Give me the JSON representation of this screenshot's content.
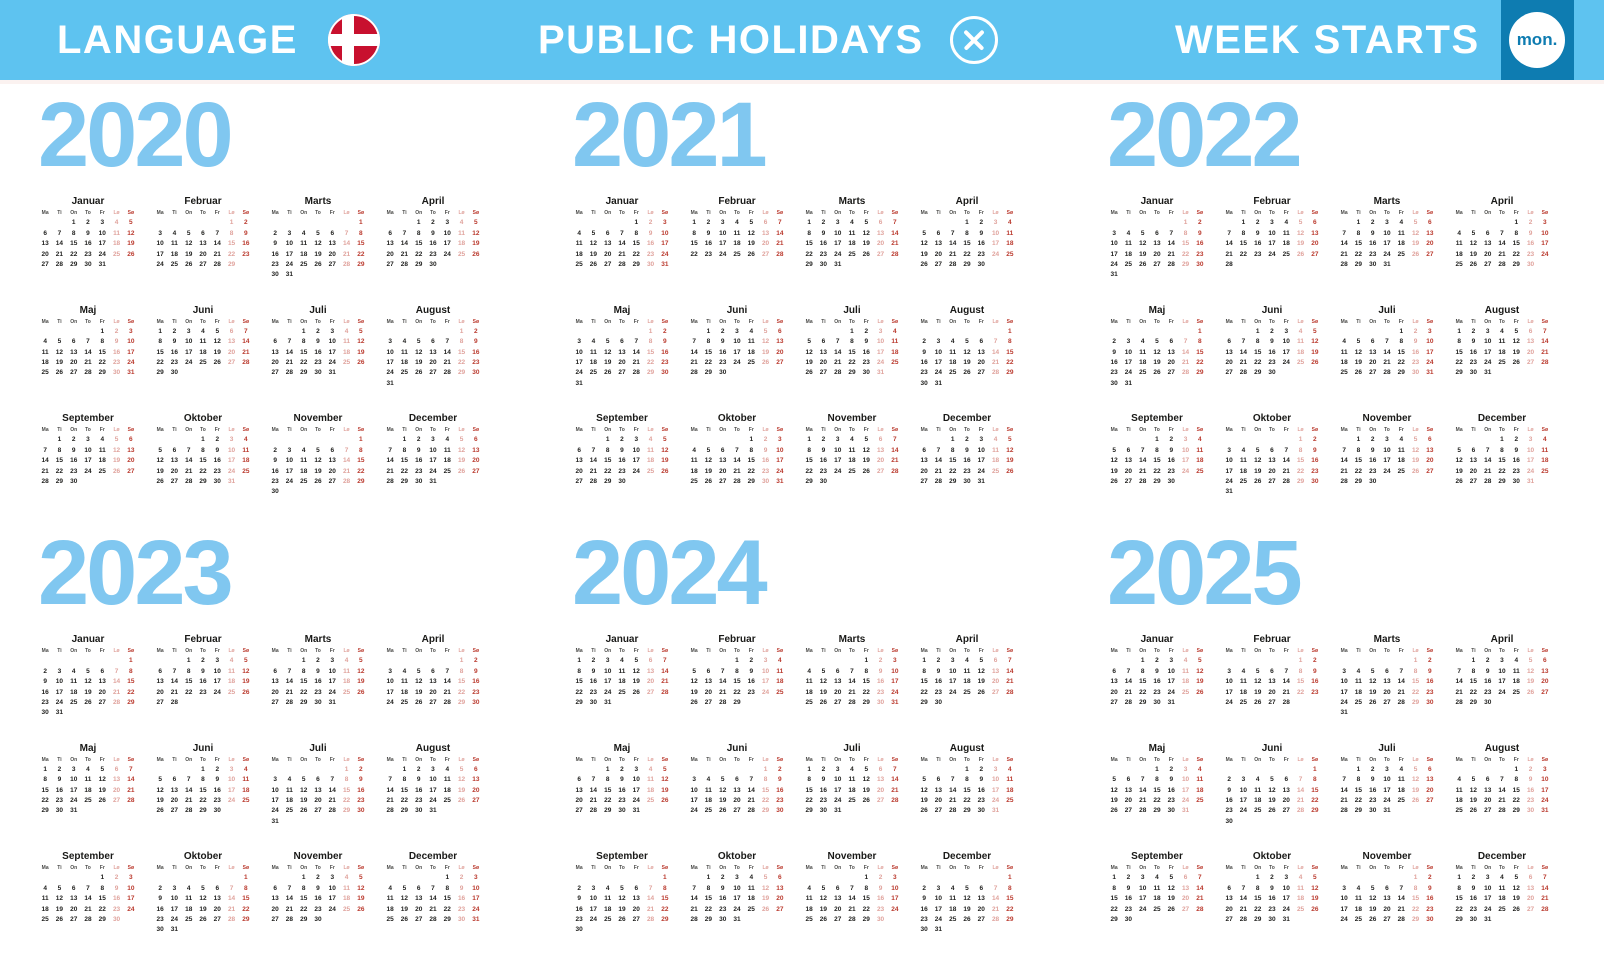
{
  "header": {
    "language": {
      "label": "LANGUAGE",
      "flag_icon": "denmark-flag-icon"
    },
    "public_holidays": {
      "label": "PUBLIC HOLIDAYS",
      "state_icon": "crossed-circle-icon",
      "state": "off"
    },
    "week_starts": {
      "label": "WEEK STARTS",
      "value": "mon."
    }
  },
  "colors": {
    "bar_blue": "#5ec3f0",
    "bar_dark_blue": "#0e7cb1",
    "year_blue": "#80c7f0",
    "weekday_text": "#21211f",
    "saturday": "#e0a39d",
    "sunday": "#ba392d",
    "flag_red": "#c8102e"
  },
  "calendar": {
    "day_headers": [
      "Ma",
      "Ti",
      "On",
      "To",
      "Fr",
      "Lø",
      "Sø"
    ],
    "years": [
      {
        "year": "2020",
        "months": [
          {
            "name": "Januar",
            "start": 2,
            "days": 31
          },
          {
            "name": "Februar",
            "start": 5,
            "days": 29
          },
          {
            "name": "Marts",
            "start": 6,
            "days": 31
          },
          {
            "name": "April",
            "start": 2,
            "days": 30
          },
          {
            "name": "Maj",
            "start": 4,
            "days": 31
          },
          {
            "name": "Juni",
            "start": 0,
            "days": 30
          },
          {
            "name": "Juli",
            "start": 2,
            "days": 31
          },
          {
            "name": "August",
            "start": 5,
            "days": 31
          },
          {
            "name": "September",
            "start": 1,
            "days": 30
          },
          {
            "name": "Oktober",
            "start": 3,
            "days": 31
          },
          {
            "name": "November",
            "start": 6,
            "days": 30
          },
          {
            "name": "December",
            "start": 1,
            "days": 31
          }
        ]
      },
      {
        "year": "2021",
        "months": [
          {
            "name": "Januar",
            "start": 4,
            "days": 31
          },
          {
            "name": "Februar",
            "start": 0,
            "days": 28
          },
          {
            "name": "Marts",
            "start": 0,
            "days": 31
          },
          {
            "name": "April",
            "start": 3,
            "days": 30
          },
          {
            "name": "Maj",
            "start": 5,
            "days": 31
          },
          {
            "name": "Juni",
            "start": 1,
            "days": 30
          },
          {
            "name": "Juli",
            "start": 3,
            "days": 31
          },
          {
            "name": "August",
            "start": 6,
            "days": 31
          },
          {
            "name": "September",
            "start": 2,
            "days": 30
          },
          {
            "name": "Oktober",
            "start": 4,
            "days": 31
          },
          {
            "name": "November",
            "start": 0,
            "days": 30
          },
          {
            "name": "December",
            "start": 2,
            "days": 31
          }
        ]
      },
      {
        "year": "2022",
        "months": [
          {
            "name": "Januar",
            "start": 5,
            "days": 31
          },
          {
            "name": "Februar",
            "start": 1,
            "days": 28
          },
          {
            "name": "Marts",
            "start": 1,
            "days": 31
          },
          {
            "name": "April",
            "start": 4,
            "days": 30
          },
          {
            "name": "Maj",
            "start": 6,
            "days": 31
          },
          {
            "name": "Juni",
            "start": 2,
            "days": 30
          },
          {
            "name": "Juli",
            "start": 4,
            "days": 31
          },
          {
            "name": "August",
            "start": 0,
            "days": 31
          },
          {
            "name": "September",
            "start": 3,
            "days": 30
          },
          {
            "name": "Oktober",
            "start": 5,
            "days": 31
          },
          {
            "name": "November",
            "start": 1,
            "days": 30
          },
          {
            "name": "December",
            "start": 3,
            "days": 31
          }
        ]
      },
      {
        "year": "2023",
        "months": [
          {
            "name": "Januar",
            "start": 6,
            "days": 31
          },
          {
            "name": "Februar",
            "start": 2,
            "days": 28
          },
          {
            "name": "Marts",
            "start": 2,
            "days": 31
          },
          {
            "name": "April",
            "start": 5,
            "days": 30
          },
          {
            "name": "Maj",
            "start": 0,
            "days": 31
          },
          {
            "name": "Juni",
            "start": 3,
            "days": 30
          },
          {
            "name": "Juli",
            "start": 5,
            "days": 31
          },
          {
            "name": "August",
            "start": 1,
            "days": 31
          },
          {
            "name": "September",
            "start": 4,
            "days": 30
          },
          {
            "name": "Oktober",
            "start": 6,
            "days": 31
          },
          {
            "name": "November",
            "start": 2,
            "days": 30
          },
          {
            "name": "December",
            "start": 4,
            "days": 31
          }
        ]
      },
      {
        "year": "2024",
        "months": [
          {
            "name": "Januar",
            "start": 0,
            "days": 31
          },
          {
            "name": "Februar",
            "start": 3,
            "days": 29
          },
          {
            "name": "Marts",
            "start": 4,
            "days": 31
          },
          {
            "name": "April",
            "start": 0,
            "days": 30
          },
          {
            "name": "Maj",
            "start": 2,
            "days": 31
          },
          {
            "name": "Juni",
            "start": 5,
            "days": 30
          },
          {
            "name": "Juli",
            "start": 0,
            "days": 31
          },
          {
            "name": "August",
            "start": 3,
            "days": 31
          },
          {
            "name": "September",
            "start": 6,
            "days": 30
          },
          {
            "name": "Oktober",
            "start": 1,
            "days": 31
          },
          {
            "name": "November",
            "start": 4,
            "days": 30
          },
          {
            "name": "December",
            "start": 6,
            "days": 31
          }
        ]
      },
      {
        "year": "2025",
        "months": [
          {
            "name": "Januar",
            "start": 2,
            "days": 31
          },
          {
            "name": "Februar",
            "start": 5,
            "days": 28
          },
          {
            "name": "Marts",
            "start": 5,
            "days": 31
          },
          {
            "name": "April",
            "start": 1,
            "days": 30
          },
          {
            "name": "Maj",
            "start": 3,
            "days": 31
          },
          {
            "name": "Juni",
            "start": 6,
            "days": 30
          },
          {
            "name": "Juli",
            "start": 1,
            "days": 31
          },
          {
            "name": "August",
            "start": 4,
            "days": 31
          },
          {
            "name": "September",
            "start": 0,
            "days": 30
          },
          {
            "name": "Oktober",
            "start": 2,
            "days": 31
          },
          {
            "name": "November",
            "start": 5,
            "days": 30
          },
          {
            "name": "December",
            "start": 0,
            "days": 31
          }
        ]
      }
    ]
  }
}
